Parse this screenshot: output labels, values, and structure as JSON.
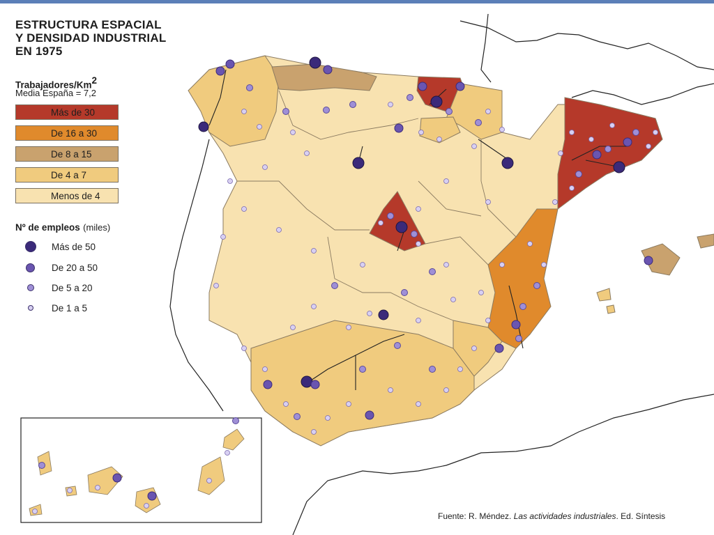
{
  "title": {
    "line1": "ESTRUCTURA ESPACIAL",
    "line2": "Y DENSIDAD INDUSTRIAL",
    "line3": "EN 1975"
  },
  "density_legend": {
    "heading": "Trabajadores/Km",
    "heading_sup": "2",
    "subheading": "Media España = 7,2",
    "classes": [
      {
        "label": "Más de 30",
        "color": "#b5392a"
      },
      {
        "label": "De 16 a 30",
        "color": "#e08a2c"
      },
      {
        "label": "De 8 a 15",
        "color": "#c9a26e"
      },
      {
        "label": "De 4 a 7",
        "color": "#f0cb7e"
      },
      {
        "label": "Menos de 4",
        "color": "#f8e2b0"
      }
    ]
  },
  "employment_legend": {
    "heading": "Nº de empleos",
    "heading_unit": "(miles)",
    "classes": [
      {
        "label": "Más de 50",
        "color": "#3b2a7a"
      },
      {
        "label": "De 20 a 50",
        "color": "#6a55b0"
      },
      {
        "label": "De 5 a 20",
        "color": "#9f8fd6"
      },
      {
        "label": "De 1 a 5",
        "color": "#d8d0f2"
      }
    ]
  },
  "source": {
    "prefix": "Fuente: R. Méndez. ",
    "book": "Las actividades industriales",
    "suffix": ". Ed. Síntesis"
  }
}
